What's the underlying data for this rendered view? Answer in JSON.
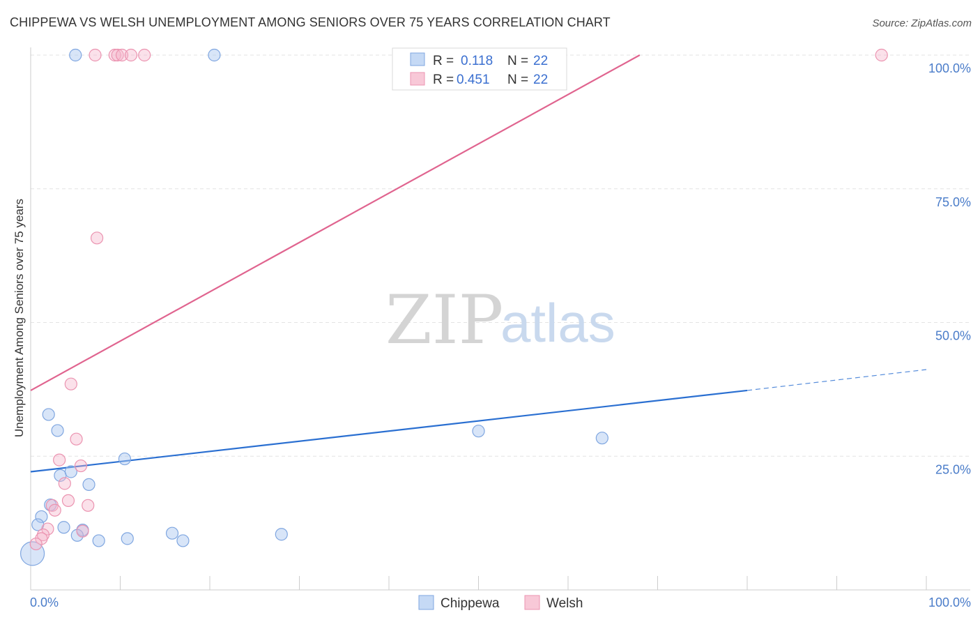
{
  "title": "CHIPPEWA VS WELSH UNEMPLOYMENT AMONG SENIORS OVER 75 YEARS CORRELATION CHART",
  "source": "Source: ZipAtlas.com",
  "watermark": {
    "zip": "ZIP",
    "atlas": "atlas"
  },
  "legend": {
    "rows": [
      {
        "r_label": "R =",
        "r_value": "0.118",
        "n_label": "N =",
        "n_value": "22"
      },
      {
        "r_label": "R =",
        "r_value": "0.451",
        "n_label": "N =",
        "n_value": "22"
      }
    ]
  },
  "chart_data": {
    "type": "scatter",
    "title": "CHIPPEWA VS WELSH UNEMPLOYMENT AMONG SENIORS OVER 75 YEARS CORRELATION CHART",
    "xlabel": "",
    "ylabel": "Unemployment Among Seniors over 75 years",
    "xlim": [
      0,
      100
    ],
    "ylim": [
      0,
      100
    ],
    "x_tick_labels": [
      "0.0%",
      "100.0%"
    ],
    "y_tick_values": [
      25,
      50,
      75,
      100
    ],
    "y_tick_labels": [
      "25.0%",
      "50.0%",
      "75.0%",
      "100.0%"
    ],
    "grid": true,
    "legend_position": "top-center",
    "colors": {
      "chippewa": "#5b8fd9",
      "welsh": "#e87aa0",
      "chippewa_line": "#2a6fd1",
      "welsh_line": "#e0648f"
    },
    "series": [
      {
        "name": "Chippewa",
        "r": 0.118,
        "n": 22,
        "trend": {
          "x0": 0,
          "y0": 22.1,
          "x1": 80,
          "y1": 37.3,
          "dash_to_x": 100,
          "dash_to_y": 41.2
        },
        "points": [
          {
            "x": 5,
            "y": 100
          },
          {
            "x": 20.5,
            "y": 100
          },
          {
            "x": 2,
            "y": 32.8
          },
          {
            "x": 3,
            "y": 29.8
          },
          {
            "x": 10.5,
            "y": 24.5
          },
          {
            "x": 3.3,
            "y": 21.4
          },
          {
            "x": 4.5,
            "y": 22.1
          },
          {
            "x": 6.5,
            "y": 19.7
          },
          {
            "x": 2.2,
            "y": 15.9
          },
          {
            "x": 1.2,
            "y": 13.7
          },
          {
            "x": 0.8,
            "y": 12.2
          },
          {
            "x": 3.7,
            "y": 11.7
          },
          {
            "x": 5.8,
            "y": 11.2
          },
          {
            "x": 7.6,
            "y": 9.2
          },
          {
            "x": 10.8,
            "y": 9.6
          },
          {
            "x": 15.8,
            "y": 10.6
          },
          {
            "x": 17,
            "y": 9.2
          },
          {
            "x": 28,
            "y": 10.4
          },
          {
            "x": 5.2,
            "y": 10.2
          },
          {
            "x": 50,
            "y": 29.7
          },
          {
            "x": 63.8,
            "y": 28.4
          },
          {
            "x": 0.2,
            "y": 6.8
          }
        ]
      },
      {
        "name": "Welsh",
        "r": 0.451,
        "n": 22,
        "trend": {
          "x0": 0,
          "y0": 37.3,
          "x1": 68,
          "y1": 100
        },
        "points": [
          {
            "x": 7.2,
            "y": 100
          },
          {
            "x": 9.4,
            "y": 100
          },
          {
            "x": 9.7,
            "y": 100
          },
          {
            "x": 10.2,
            "y": 100
          },
          {
            "x": 11.2,
            "y": 100
          },
          {
            "x": 12.7,
            "y": 100
          },
          {
            "x": 95,
            "y": 100
          },
          {
            "x": 7.4,
            "y": 65.8
          },
          {
            "x": 4.5,
            "y": 38.5
          },
          {
            "x": 5.1,
            "y": 28.2
          },
          {
            "x": 3.2,
            "y": 24.3
          },
          {
            "x": 5.6,
            "y": 23.2
          },
          {
            "x": 3.8,
            "y": 19.9
          },
          {
            "x": 4.2,
            "y": 16.7
          },
          {
            "x": 6.4,
            "y": 15.8
          },
          {
            "x": 2.4,
            "y": 15.8
          },
          {
            "x": 2.7,
            "y": 14.9
          },
          {
            "x": 1.9,
            "y": 11.4
          },
          {
            "x": 5.8,
            "y": 11.0
          },
          {
            "x": 1.4,
            "y": 10.3
          },
          {
            "x": 1.2,
            "y": 9.6
          },
          {
            "x": 0.6,
            "y": 8.6
          }
        ]
      }
    ]
  },
  "bottom_legend": [
    {
      "label": "Chippewa"
    },
    {
      "label": "Welsh"
    }
  ]
}
